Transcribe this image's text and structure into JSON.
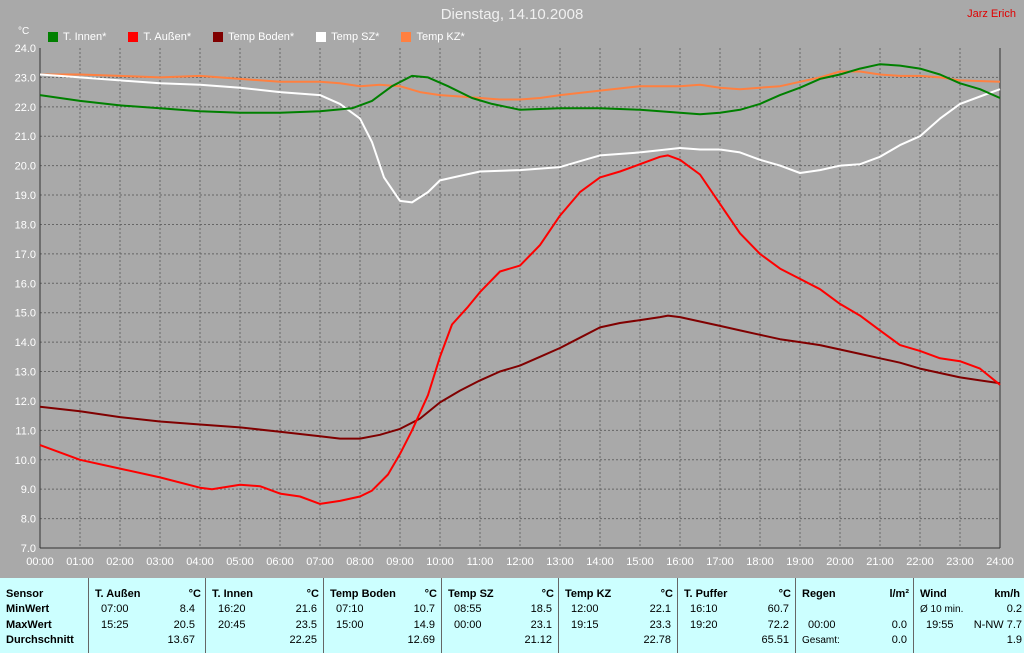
{
  "title": "Dienstag, 14.10.2008",
  "author": "Jarz Erich",
  "unit_label": "°C",
  "legend": [
    {
      "name": "T. Innen*",
      "color": "#008000"
    },
    {
      "name": "T. Außen*",
      "color": "#ff0000"
    },
    {
      "name": "Temp Boden*",
      "color": "#800000"
    },
    {
      "name": "Temp SZ*",
      "color": "#ffffff"
    },
    {
      "name": "Temp KZ*",
      "color": "#ff8040"
    }
  ],
  "chart_data": {
    "type": "line",
    "title": "Dienstag, 14.10.2008",
    "ylabel": "°C",
    "xlabel": "",
    "ylim": [
      7.0,
      24.0
    ],
    "xlim": [
      0,
      24
    ],
    "grid": true,
    "legend_position": "top-left",
    "y_ticks": [
      "7.0",
      "8.0",
      "9.0",
      "10.0",
      "11.0",
      "12.0",
      "13.0",
      "14.0",
      "15.0",
      "16.0",
      "17.0",
      "18.0",
      "19.0",
      "20.0",
      "21.0",
      "22.0",
      "23.0",
      "24.0"
    ],
    "x_ticks": [
      "00:00",
      "01:00",
      "02:00",
      "03:00",
      "04:00",
      "05:00",
      "06:00",
      "07:00",
      "08:00",
      "09:00",
      "10:00",
      "11:00",
      "12:00",
      "13:00",
      "14:00",
      "15:00",
      "16:00",
      "17:00",
      "18:00",
      "19:00",
      "20:00",
      "21:00",
      "22:00",
      "23:00",
      "24:00"
    ],
    "series": [
      {
        "name": "T. Innen*",
        "color": "#008000",
        "x": [
          0,
          1,
          2,
          3,
          4,
          5,
          6,
          7,
          7.8,
          8.3,
          8.8,
          9.3,
          9.7,
          10.2,
          10.8,
          11.3,
          12,
          13,
          14,
          15,
          16,
          16.5,
          17,
          17.5,
          18,
          18.5,
          19,
          19.5,
          20,
          20.5,
          21,
          21.5,
          22,
          22.5,
          23,
          23.5,
          24
        ],
        "y": [
          22.4,
          22.2,
          22.05,
          21.95,
          21.85,
          21.8,
          21.8,
          21.85,
          21.95,
          22.2,
          22.7,
          23.05,
          23.0,
          22.7,
          22.3,
          22.1,
          21.9,
          21.95,
          21.95,
          21.9,
          21.8,
          21.75,
          21.8,
          21.9,
          22.1,
          22.4,
          22.65,
          22.95,
          23.1,
          23.3,
          23.45,
          23.4,
          23.3,
          23.1,
          22.8,
          22.6,
          22.3
        ]
      },
      {
        "name": "T. Außen*",
        "color": "#ff0000",
        "x": [
          0,
          0.5,
          1,
          2,
          3,
          4,
          4.3,
          5,
          5.5,
          6,
          6.5,
          7,
          7.5,
          8,
          8.3,
          8.7,
          9,
          9.3,
          9.7,
          10,
          10.3,
          10.7,
          11,
          11.5,
          12,
          12.5,
          13,
          13.5,
          14,
          14.5,
          15,
          15.5,
          15.7,
          16,
          16.5,
          17,
          17.5,
          18,
          18.5,
          19,
          19.5,
          20,
          20.5,
          21,
          21.5,
          22,
          22.5,
          23,
          23.5,
          24
        ],
        "y": [
          10.5,
          10.25,
          10.0,
          9.7,
          9.4,
          9.05,
          9.0,
          9.15,
          9.1,
          8.85,
          8.75,
          8.5,
          8.6,
          8.75,
          8.95,
          9.5,
          10.2,
          11.0,
          12.2,
          13.5,
          14.6,
          15.2,
          15.7,
          16.4,
          16.6,
          17.3,
          18.3,
          19.1,
          19.6,
          19.8,
          20.05,
          20.3,
          20.35,
          20.2,
          19.7,
          18.7,
          17.7,
          17.0,
          16.5,
          16.15,
          15.8,
          15.3,
          14.9,
          14.4,
          13.9,
          13.7,
          13.45,
          13.35,
          13.1,
          12.55
        ]
      },
      {
        "name": "Temp Boden*",
        "color": "#800000",
        "x": [
          0,
          1,
          2,
          3,
          4,
          5,
          6,
          7,
          7.5,
          8,
          8.5,
          9,
          9.5,
          10,
          10.5,
          11,
          11.5,
          12,
          12.5,
          13,
          13.5,
          14,
          14.5,
          15,
          15.5,
          15.7,
          16,
          16.5,
          17,
          17.5,
          18,
          18.5,
          19,
          19.5,
          20,
          20.5,
          21,
          21.5,
          22,
          22.5,
          23,
          23.5,
          24
        ],
        "y": [
          11.8,
          11.65,
          11.45,
          11.3,
          11.2,
          11.1,
          10.95,
          10.8,
          10.72,
          10.72,
          10.85,
          11.05,
          11.4,
          11.95,
          12.35,
          12.7,
          13.0,
          13.2,
          13.5,
          13.8,
          14.15,
          14.5,
          14.65,
          14.75,
          14.85,
          14.9,
          14.85,
          14.7,
          14.55,
          14.4,
          14.25,
          14.1,
          14.0,
          13.9,
          13.75,
          13.6,
          13.45,
          13.3,
          13.1,
          12.95,
          12.8,
          12.7,
          12.6
        ]
      },
      {
        "name": "Temp SZ*",
        "color": "#ffffff",
        "x": [
          0,
          0.5,
          1,
          2,
          3,
          4,
          5,
          6,
          7,
          7.5,
          8,
          8.3,
          8.6,
          9,
          9.3,
          9.7,
          10,
          10.5,
          11,
          12,
          13,
          13.5,
          14,
          15,
          16,
          16.5,
          17,
          17.5,
          18,
          18.5,
          19,
          19.5,
          20,
          20.5,
          21,
          21.5,
          22,
          22.5,
          23,
          23.5,
          24
        ],
        "y": [
          23.1,
          23.05,
          23.0,
          22.9,
          22.8,
          22.75,
          22.65,
          22.5,
          22.4,
          22.1,
          21.6,
          20.8,
          19.6,
          18.8,
          18.75,
          19.1,
          19.5,
          19.65,
          19.8,
          19.85,
          19.95,
          20.15,
          20.35,
          20.45,
          20.6,
          20.55,
          20.55,
          20.45,
          20.2,
          20.0,
          19.75,
          19.85,
          20.0,
          20.05,
          20.3,
          20.7,
          21.0,
          21.6,
          22.1,
          22.35,
          22.6
        ]
      },
      {
        "name": "Temp KZ*",
        "color": "#ff8040",
        "x": [
          0,
          1,
          2,
          3,
          4,
          5,
          6,
          7,
          7.5,
          8,
          8.5,
          9,
          9.5,
          10,
          10.5,
          11,
          11.5,
          12,
          12.5,
          13,
          14,
          15,
          16,
          16.5,
          17,
          17.5,
          18,
          18.5,
          19,
          19.5,
          20,
          20.5,
          21,
          21.5,
          22,
          22.5,
          23,
          24
        ],
        "y": [
          23.1,
          23.1,
          23.05,
          23.0,
          23.05,
          22.95,
          22.85,
          22.85,
          22.8,
          22.7,
          22.75,
          22.7,
          22.5,
          22.4,
          22.35,
          22.3,
          22.25,
          22.25,
          22.3,
          22.4,
          22.55,
          22.7,
          22.7,
          22.75,
          22.65,
          22.6,
          22.65,
          22.7,
          22.85,
          23.0,
          23.2,
          23.2,
          23.1,
          23.05,
          23.05,
          23.0,
          22.9,
          22.85
        ]
      }
    ]
  },
  "table": {
    "headers": [
      {
        "name": "Sensor",
        "unit": ""
      },
      {
        "name": "T. Außen",
        "unit": "°C"
      },
      {
        "name": "T. Innen",
        "unit": "°C"
      },
      {
        "name": "Temp Boden",
        "unit": "°C"
      },
      {
        "name": "Temp SZ",
        "unit": "°C"
      },
      {
        "name": "Temp KZ",
        "unit": "°C"
      },
      {
        "name": "T. Puffer",
        "unit": "°C"
      },
      {
        "name": "Regen",
        "unit": "l/m²"
      },
      {
        "name": "Wind",
        "unit": "km/h"
      }
    ],
    "row_labels": [
      "MinWert",
      "MaxWert",
      "Durchschnitt"
    ],
    "cells": [
      [
        {
          "t": "07:00",
          "v": "8.4"
        },
        {
          "t": "15:25",
          "v": "20.5"
        },
        {
          "t": "",
          "v": "13.67"
        }
      ],
      [
        {
          "t": "16:20",
          "v": "21.6"
        },
        {
          "t": "20:45",
          "v": "23.5"
        },
        {
          "t": "",
          "v": "22.25"
        }
      ],
      [
        {
          "t": "07:10",
          "v": "10.7"
        },
        {
          "t": "15:00",
          "v": "14.9"
        },
        {
          "t": "",
          "v": "12.69"
        }
      ],
      [
        {
          "t": "08:55",
          "v": "18.5"
        },
        {
          "t": "00:00",
          "v": "23.1"
        },
        {
          "t": "",
          "v": "21.12"
        }
      ],
      [
        {
          "t": "12:00",
          "v": "22.1"
        },
        {
          "t": "19:15",
          "v": "23.3"
        },
        {
          "t": "",
          "v": "22.78"
        }
      ],
      [
        {
          "t": "16:10",
          "v": "60.7"
        },
        {
          "t": "19:20",
          "v": "72.2"
        },
        {
          "t": "",
          "v": "65.51"
        }
      ],
      [
        {
          "t": "",
          "v": ""
        },
        {
          "t": "00:00",
          "v": "0.0"
        },
        {
          "t": "Gesamt:",
          "v": "0.0"
        }
      ],
      [
        {
          "t": "Ø 10 min.",
          "v": "0.2"
        },
        {
          "t": "19:55",
          "v": "N-NW 7.7"
        },
        {
          "t": "",
          "v": "1.9"
        }
      ]
    ]
  }
}
